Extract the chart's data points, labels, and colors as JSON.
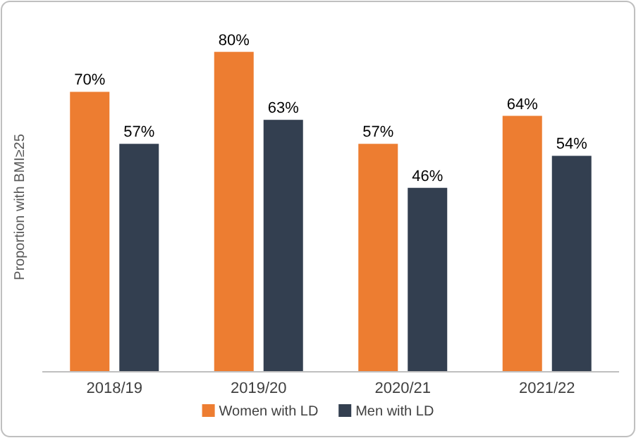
{
  "chart_data": {
    "type": "bar",
    "ylabel": "Proportion with BMI≥25",
    "categories": [
      "2018/19",
      "2019/20",
      "2020/21",
      "2021/22"
    ],
    "series": [
      {
        "name": "Women with LD",
        "color": "#ed7d31",
        "values": [
          70,
          80,
          57,
          64
        ],
        "value_labels": [
          "70%",
          "80%",
          "57%",
          "64%"
        ]
      },
      {
        "name": "Men with LD",
        "color": "#333f50",
        "values": [
          57,
          63,
          46,
          54
        ],
        "value_labels": [
          "57%",
          "63%",
          "46%",
          "54%"
        ]
      }
    ],
    "legend": "bottom",
    "tick_labels": "x"
  }
}
